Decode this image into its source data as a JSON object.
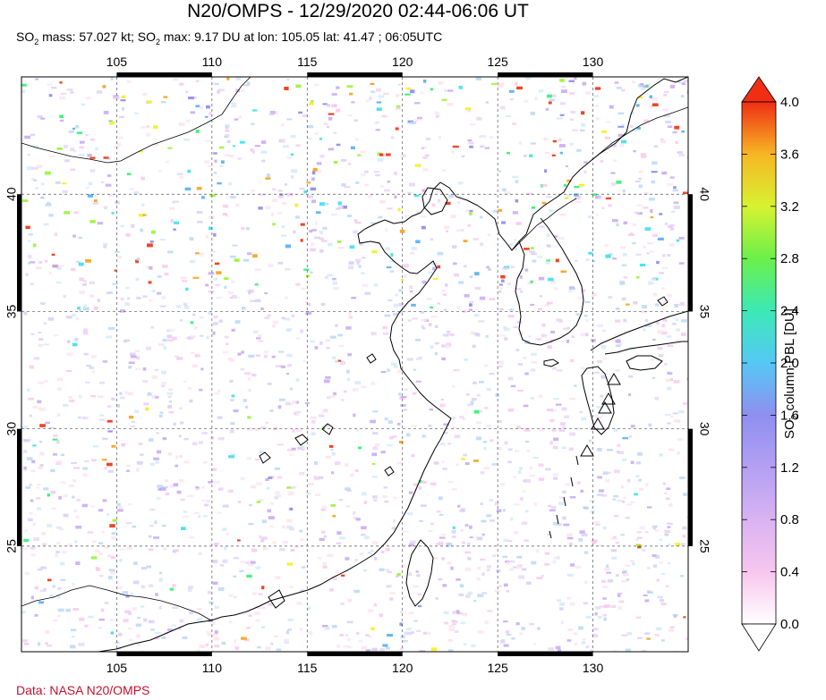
{
  "title": "N20/OMPS - 12/29/2020 02:44-06:06 UT",
  "subtitle": {
    "so": "SO",
    "two": "2",
    "mass_text": " mass: 57.027 kt; ",
    "max_text": " max: 9.17 DU at lon: 105.05 lat: 41.47 ; 06:05UTC"
  },
  "map": {
    "lon_range": [
      100,
      135
    ],
    "lat_range": [
      20.5,
      45
    ],
    "lon_ticks": [
      "105",
      "110",
      "115",
      "120",
      "125",
      "130"
    ],
    "lat_ticks": [
      "25",
      "30",
      "35",
      "40"
    ],
    "volcano_markers": 5
  },
  "colorbar": {
    "label_pre": "SO",
    "label_sub": "2",
    "label_post": " column PBL [DU]",
    "ticks": [
      "0.0",
      "0.4",
      "0.8",
      "1.2",
      "1.6",
      "2.0",
      "2.4",
      "2.8",
      "3.2",
      "3.6",
      "4.0"
    ],
    "range": [
      0,
      4
    ],
    "colors": [
      "#ffffff",
      "#f7c6ee",
      "#c2a2f3",
      "#8f8ff0",
      "#5fb2f5",
      "#44e1ee",
      "#3cf07a",
      "#9cf53b",
      "#f4f02a",
      "#f7a522",
      "#f03a18"
    ]
  },
  "credit": "Data: NASA N20/OMPS"
}
